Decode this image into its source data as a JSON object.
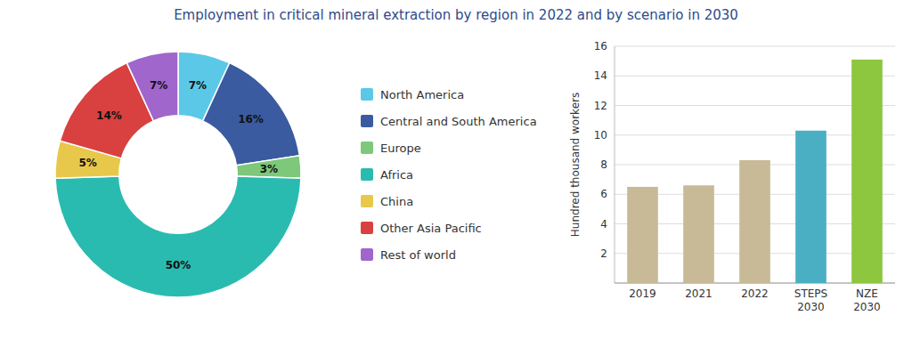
{
  "chart_data": [
    {
      "type": "pie",
      "title": "Employment in critical mineral extraction by region in 2022 and by scenario in 2030",
      "categories": [
        "North America",
        "Central and South America",
        "Europe",
        "Africa",
        "China",
        "Other Asia Pacific",
        "Rest of world"
      ],
      "values": [
        7,
        16,
        3,
        50,
        5,
        14,
        7
      ],
      "value_labels": [
        "7%",
        "16%",
        "3%",
        "50%",
        "5%",
        "14%",
        "7%"
      ],
      "colors": [
        "#5BC8E8",
        "#3A5BA0",
        "#7DC87A",
        "#2ABBB0",
        "#E8C84A",
        "#D94040",
        "#A066CC"
      ],
      "data_labels": true,
      "legend": "right"
    },
    {
      "type": "bar",
      "categories": [
        "2019",
        "2021",
        "2022",
        "STEPS\n2030",
        "NZE\n2030"
      ],
      "values": [
        6.5,
        6.6,
        8.3,
        10.3,
        15.1
      ],
      "colors": [
        "#C8BA96",
        "#C8BA96",
        "#C8BA96",
        "#4BAFC4",
        "#8DC63F"
      ],
      "ylabel": "Hundred thousand workers",
      "ylim": [
        0,
        16
      ],
      "yticks": [
        2,
        4,
        6,
        8,
        10,
        12,
        14,
        16
      ],
      "grid": true
    }
  ]
}
